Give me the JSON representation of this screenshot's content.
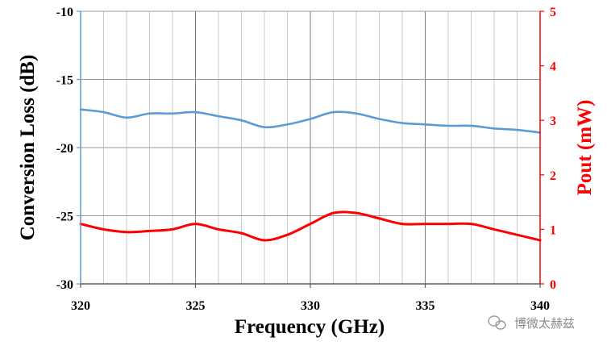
{
  "chart_data": {
    "type": "line",
    "xlabel": "Frequency  (GHz)",
    "ylabel_left": "Conversion Loss (dB)",
    "ylabel_right": "Pout (mW)",
    "xlim": [
      320,
      340
    ],
    "ylim_left": [
      -30,
      -10
    ],
    "ylim_right": [
      0,
      5
    ],
    "x_ticks": [
      320,
      325,
      330,
      335,
      340
    ],
    "y_left_ticks": [
      -30,
      -25,
      -20,
      -15,
      -10
    ],
    "y_right_ticks": [
      0,
      1,
      2,
      3,
      4,
      5
    ],
    "grid": true,
    "series": [
      {
        "axis": "left",
        "color": "#5b9bd5",
        "x": [
          320,
          321,
          322,
          323,
          324,
          325,
          326,
          327,
          328,
          329,
          330,
          331,
          332,
          333,
          334,
          335,
          336,
          337,
          338,
          339,
          340
        ],
        "y": [
          -17.2,
          -17.4,
          -17.8,
          -17.5,
          -17.5,
          -17.4,
          -17.7,
          -18.0,
          -18.5,
          -18.3,
          -17.9,
          -17.4,
          -17.5,
          -17.9,
          -18.2,
          -18.3,
          -18.4,
          -18.4,
          -18.6,
          -18.7,
          -18.9
        ]
      },
      {
        "axis": "right",
        "color": "#ff0000",
        "x": [
          320,
          321,
          322,
          323,
          324,
          325,
          326,
          327,
          328,
          329,
          330,
          331,
          332,
          333,
          334,
          335,
          336,
          337,
          338,
          339,
          340
        ],
        "y": [
          1.1,
          1.0,
          0.95,
          0.97,
          1.0,
          1.1,
          1.0,
          0.93,
          0.8,
          0.9,
          1.1,
          1.3,
          1.3,
          1.2,
          1.1,
          1.1,
          1.1,
          1.1,
          1.0,
          0.9,
          0.8
        ]
      }
    ]
  },
  "watermark": "博微太赫兹"
}
